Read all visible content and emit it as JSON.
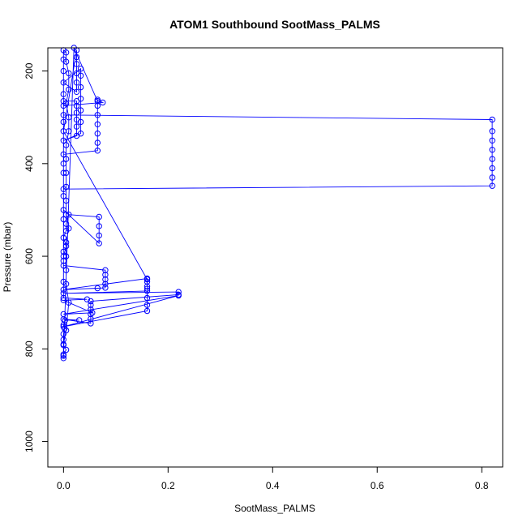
{
  "chart_data": {
    "type": "line",
    "title": "ATOM1 Southbound SootMass_PALMS",
    "xlabel": "SootMass_PALMS",
    "ylabel": "Pressure (mbar)",
    "xlim": [
      -0.03,
      0.84
    ],
    "ylim": [
      1055,
      150
    ],
    "y_reversed": true,
    "x_ticks": [
      0.0,
      0.2,
      0.4,
      0.6,
      0.8
    ],
    "x_tick_labels": [
      "0.0",
      "0.2",
      "0.4",
      "0.6",
      "0.8"
    ],
    "y_ticks": [
      200,
      400,
      600,
      800,
      1000
    ],
    "y_tick_labels": [
      "200",
      "400",
      "600",
      "800",
      "1000"
    ],
    "grid": false,
    "legend": "none",
    "series_color": "#0000ff",
    "series": [
      {
        "points": [
          {
            "x": 0.0,
            "y": 820
          },
          {
            "x": 0.0,
            "y": 812
          },
          {
            "x": 0.005,
            "y": 802
          },
          {
            "x": 0.0,
            "y": 792
          },
          {
            "x": 0.0,
            "y": 780
          },
          {
            "x": 0.0,
            "y": 768
          },
          {
            "x": 0.002,
            "y": 756
          },
          {
            "x": 0.0,
            "y": 748
          },
          {
            "x": 0.003,
            "y": 738
          },
          {
            "x": 0.03,
            "y": 738
          },
          {
            "x": 0.0,
            "y": 736
          },
          {
            "x": 0.052,
            "y": 745
          },
          {
            "x": 0.052,
            "y": 735
          },
          {
            "x": 0.052,
            "y": 725
          },
          {
            "x": 0.052,
            "y": 715
          },
          {
            "x": 0.052,
            "y": 705
          },
          {
            "x": 0.052,
            "y": 697
          },
          {
            "x": 0.22,
            "y": 683
          },
          {
            "x": 0.22,
            "y": 677
          },
          {
            "x": 0.0,
            "y": 680
          },
          {
            "x": 0.16,
            "y": 675
          },
          {
            "x": 0.16,
            "y": 665
          },
          {
            "x": 0.16,
            "y": 655
          },
          {
            "x": 0.16,
            "y": 648
          },
          {
            "x": 0.0,
            "y": 672
          },
          {
            "x": 0.065,
            "y": 669
          },
          {
            "x": 0.08,
            "y": 668
          },
          {
            "x": 0.08,
            "y": 660
          },
          {
            "x": 0.08,
            "y": 650
          },
          {
            "x": 0.08,
            "y": 640
          },
          {
            "x": 0.08,
            "y": 630
          },
          {
            "x": 0.0,
            "y": 620
          },
          {
            "x": 0.0,
            "y": 600
          },
          {
            "x": 0.005,
            "y": 578
          },
          {
            "x": 0.0,
            "y": 560
          },
          {
            "x": 0.005,
            "y": 545
          },
          {
            "x": 0.005,
            "y": 530
          },
          {
            "x": 0.01,
            "y": 510
          },
          {
            "x": 0.068,
            "y": 515
          },
          {
            "x": 0.068,
            "y": 535
          },
          {
            "x": 0.068,
            "y": 555
          },
          {
            "x": 0.068,
            "y": 572
          },
          {
            "x": 0.0,
            "y": 500
          },
          {
            "x": 0.0,
            "y": 470
          },
          {
            "x": 0.0,
            "y": 455
          },
          {
            "x": 0.82,
            "y": 448
          },
          {
            "x": 0.82,
            "y": 430
          },
          {
            "x": 0.82,
            "y": 410
          },
          {
            "x": 0.82,
            "y": 390
          },
          {
            "x": 0.82,
            "y": 370
          },
          {
            "x": 0.82,
            "y": 350
          },
          {
            "x": 0.82,
            "y": 330
          },
          {
            "x": 0.82,
            "y": 305
          },
          {
            "x": 0.0,
            "y": 295
          },
          {
            "x": 0.0,
            "y": 380
          },
          {
            "x": 0.065,
            "y": 372
          },
          {
            "x": 0.065,
            "y": 355
          },
          {
            "x": 0.065,
            "y": 335
          },
          {
            "x": 0.065,
            "y": 315
          },
          {
            "x": 0.065,
            "y": 295
          },
          {
            "x": 0.065,
            "y": 275
          },
          {
            "x": 0.065,
            "y": 262
          },
          {
            "x": 0.075,
            "y": 268
          },
          {
            "x": 0.0,
            "y": 275
          },
          {
            "x": 0.0,
            "y": 265
          },
          {
            "x": 0.025,
            "y": 265
          },
          {
            "x": 0.025,
            "y": 275
          },
          {
            "x": 0.025,
            "y": 290
          },
          {
            "x": 0.025,
            "y": 305
          },
          {
            "x": 0.025,
            "y": 320
          },
          {
            "x": 0.025,
            "y": 340
          },
          {
            "x": 0.0,
            "y": 350
          },
          {
            "x": 0.033,
            "y": 335
          },
          {
            "x": 0.033,
            "y": 310
          },
          {
            "x": 0.033,
            "y": 285
          },
          {
            "x": 0.033,
            "y": 260
          },
          {
            "x": 0.033,
            "y": 235
          },
          {
            "x": 0.033,
            "y": 210
          },
          {
            "x": 0.033,
            "y": 195
          },
          {
            "x": 0.0,
            "y": 225
          },
          {
            "x": 0.025,
            "y": 245
          },
          {
            "x": 0.025,
            "y": 225
          },
          {
            "x": 0.025,
            "y": 205
          },
          {
            "x": 0.025,
            "y": 185
          },
          {
            "x": 0.025,
            "y": 170
          },
          {
            "x": 0.025,
            "y": 155
          },
          {
            "x": 0.0,
            "y": 330
          },
          {
            "x": 0.16,
            "y": 650
          },
          {
            "x": 0.16,
            "y": 670
          },
          {
            "x": 0.16,
            "y": 690
          },
          {
            "x": 0.16,
            "y": 705
          },
          {
            "x": 0.16,
            "y": 718
          },
          {
            "x": 0.0,
            "y": 752
          },
          {
            "x": 0.22,
            "y": 685
          },
          {
            "x": 0.0,
            "y": 725
          },
          {
            "x": 0.055,
            "y": 722
          },
          {
            "x": 0.0,
            "y": 695
          },
          {
            "x": 0.045,
            "y": 693
          },
          {
            "x": 0.0,
            "y": 690
          },
          {
            "x": 0.0,
            "y": 655
          },
          {
            "x": 0.0,
            "y": 610
          },
          {
            "x": 0.0,
            "y": 590
          },
          {
            "x": 0.0,
            "y": 520
          },
          {
            "x": 0.0,
            "y": 420
          },
          {
            "x": 0.0,
            "y": 400
          },
          {
            "x": 0.0,
            "y": 310
          },
          {
            "x": 0.0,
            "y": 250
          },
          {
            "x": 0.0,
            "y": 200
          },
          {
            "x": 0.0,
            "y": 175
          },
          {
            "x": 0.0,
            "y": 155
          },
          {
            "x": 0.005,
            "y": 160
          },
          {
            "x": 0.005,
            "y": 180
          },
          {
            "x": 0.01,
            "y": 205
          },
          {
            "x": 0.01,
            "y": 240
          },
          {
            "x": 0.005,
            "y": 270
          },
          {
            "x": 0.01,
            "y": 300
          },
          {
            "x": 0.01,
            "y": 330
          },
          {
            "x": 0.005,
            "y": 360
          },
          {
            "x": 0.005,
            "y": 390
          },
          {
            "x": 0.005,
            "y": 420
          },
          {
            "x": 0.005,
            "y": 450
          },
          {
            "x": 0.005,
            "y": 480
          },
          {
            "x": 0.005,
            "y": 510
          },
          {
            "x": 0.01,
            "y": 540
          },
          {
            "x": 0.005,
            "y": 570
          },
          {
            "x": 0.005,
            "y": 600
          },
          {
            "x": 0.005,
            "y": 630
          },
          {
            "x": 0.005,
            "y": 660
          },
          {
            "x": 0.01,
            "y": 700
          },
          {
            "x": 0.005,
            "y": 760
          },
          {
            "x": 0.0,
            "y": 790
          },
          {
            "x": 0.0,
            "y": 815
          },
          {
            "x": 0.02,
            "y": 150
          },
          {
            "x": 0.065,
            "y": 265
          }
        ]
      }
    ]
  }
}
